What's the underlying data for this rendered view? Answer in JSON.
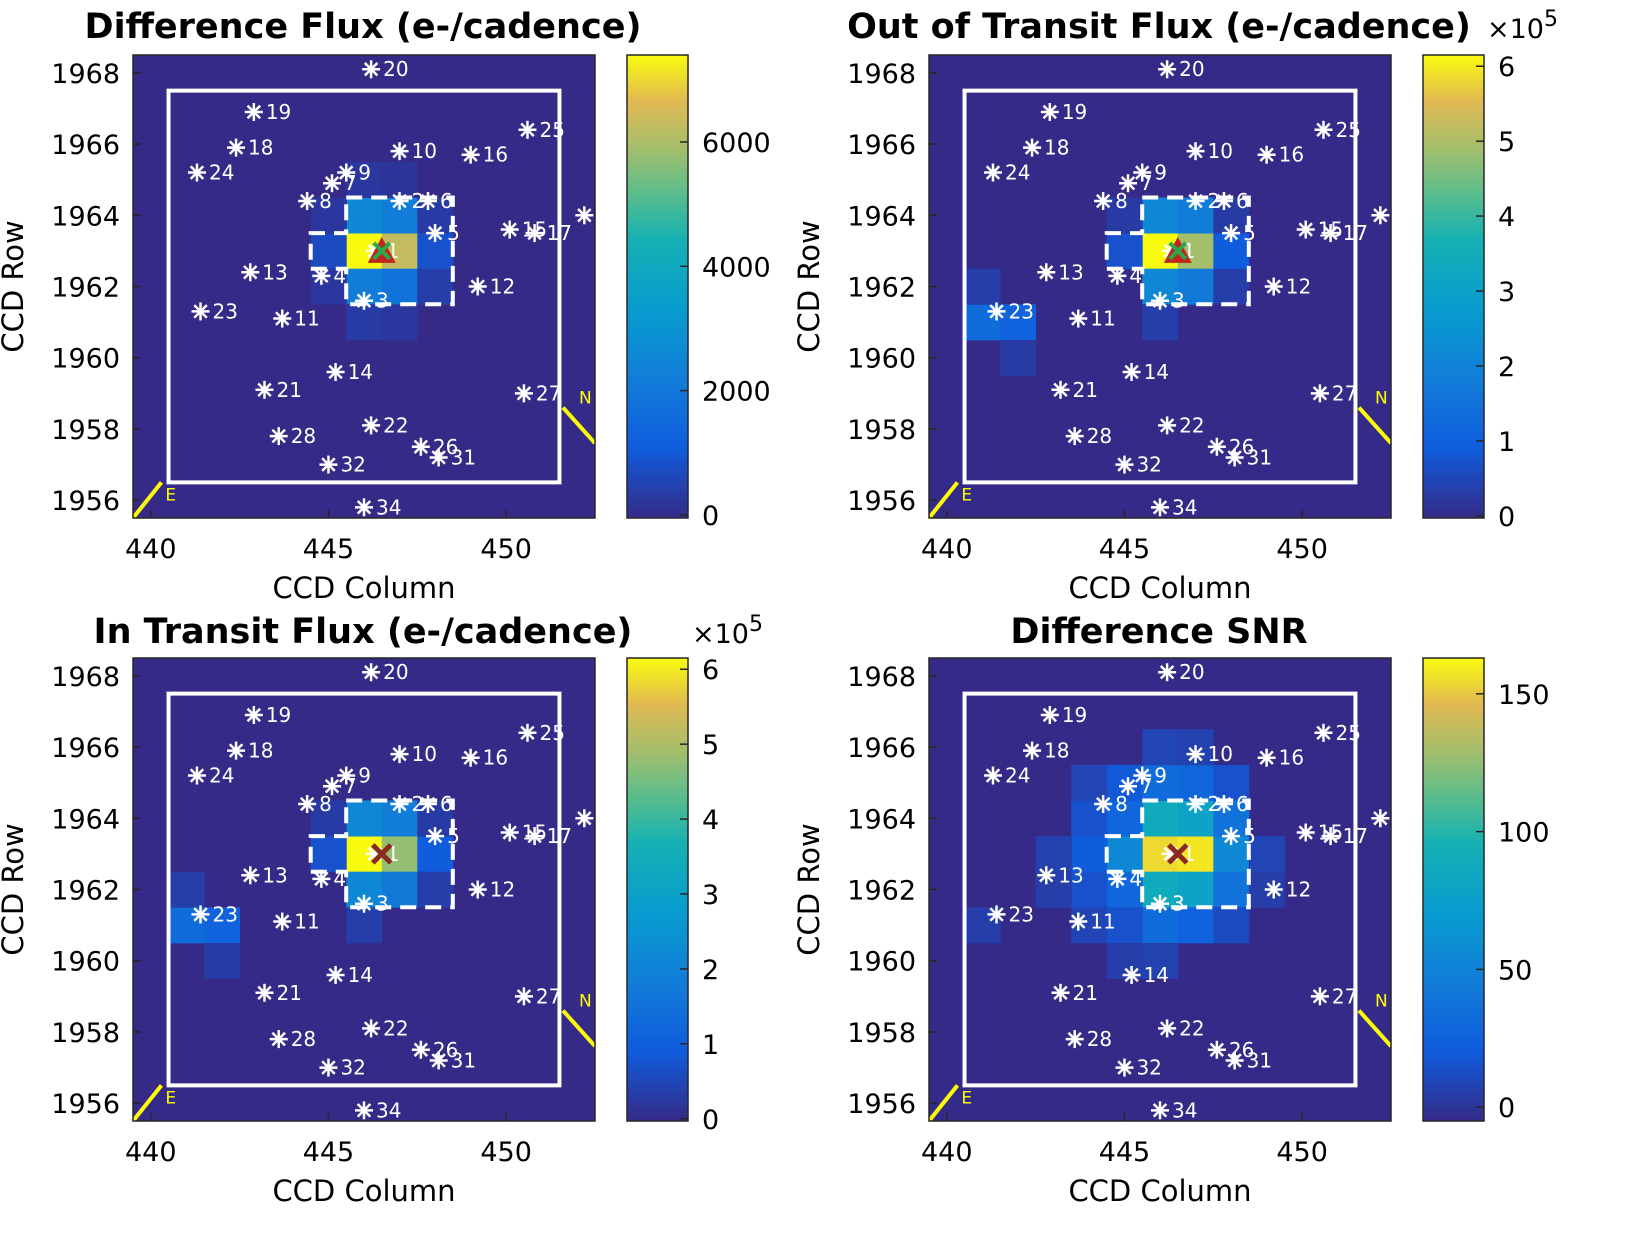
{
  "chart_data": [
    {
      "type": "heatmap",
      "title": "Difference Flux (e-/cadence)",
      "xlabel": "CCD Column",
      "ylabel": "CCD Row",
      "colorbar": {
        "ticks": [
          "0",
          "2000",
          "4000",
          "6000"
        ],
        "tick_values": [
          0,
          2000,
          4000,
          6000
        ],
        "range": [
          -50,
          7400
        ],
        "multiplier": ""
      },
      "marker": "triangle",
      "pixels": [
        {
          "col": 446,
          "row": 1963,
          "v": 1
        },
        {
          "col": 447,
          "row": 1963,
          "v": 0.85
        },
        {
          "col": 448,
          "row": 1963,
          "v": 0.12
        },
        {
          "col": 446,
          "row": 1964,
          "v": 0.35
        },
        {
          "col": 447,
          "row": 1964,
          "v": 0.3
        },
        {
          "col": 446,
          "row": 1962,
          "v": 0.3
        },
        {
          "col": 447,
          "row": 1962,
          "v": 0.25
        },
        {
          "col": 445,
          "row": 1963,
          "v": 0.1
        },
        {
          "col": 448,
          "row": 1964,
          "v": 0.05
        },
        {
          "col": 448,
          "row": 1962,
          "v": 0.06
        },
        {
          "col": 445,
          "row": 1964,
          "v": 0.04
        },
        {
          "col": 445,
          "row": 1962,
          "v": 0.04
        },
        {
          "col": 446,
          "row": 1961,
          "v": 0.05
        },
        {
          "col": 447,
          "row": 1961,
          "v": 0.04
        },
        {
          "col": 446,
          "row": 1965,
          "v": 0.04
        },
        {
          "col": 447,
          "row": 1965,
          "v": 0.03
        }
      ]
    },
    {
      "type": "heatmap",
      "title": "Out of Transit Flux (e-/cadence)",
      "xlabel": "CCD Column",
      "ylabel": "CCD Row",
      "colorbar": {
        "ticks": [
          "0",
          "1",
          "2",
          "3",
          "4",
          "5",
          "6"
        ],
        "tick_values": [
          0,
          1,
          2,
          3,
          4,
          5,
          6
        ],
        "range": [
          -0.03,
          6.15
        ],
        "multiplier": "×10^5"
      },
      "marker": "triangle",
      "pixels": [
        {
          "col": 446,
          "row": 1963,
          "v": 1
        },
        {
          "col": 447,
          "row": 1963,
          "v": 0.8
        },
        {
          "col": 448,
          "row": 1963,
          "v": 0.15
        },
        {
          "col": 446,
          "row": 1964,
          "v": 0.35
        },
        {
          "col": 447,
          "row": 1964,
          "v": 0.3
        },
        {
          "col": 446,
          "row": 1962,
          "v": 0.35
        },
        {
          "col": 447,
          "row": 1962,
          "v": 0.28
        },
        {
          "col": 445,
          "row": 1963,
          "v": 0.12
        },
        {
          "col": 441,
          "row": 1961,
          "v": 0.22
        },
        {
          "col": 442,
          "row": 1961,
          "v": 0.18
        },
        {
          "col": 441,
          "row": 1962,
          "v": 0.06
        },
        {
          "col": 442,
          "row": 1960,
          "v": 0.05
        },
        {
          "col": 446,
          "row": 1961,
          "v": 0.06
        },
        {
          "col": 445,
          "row": 1964,
          "v": 0.05
        },
        {
          "col": 448,
          "row": 1964,
          "v": 0.05
        },
        {
          "col": 448,
          "row": 1962,
          "v": 0.06
        }
      ]
    },
    {
      "type": "heatmap",
      "title": "In Transit Flux (e-/cadence)",
      "xlabel": "CCD Column",
      "ylabel": "CCD Row",
      "colorbar": {
        "ticks": [
          "0",
          "1",
          "2",
          "3",
          "4",
          "5",
          "6"
        ],
        "tick_values": [
          0,
          1,
          2,
          3,
          4,
          5,
          6
        ],
        "range": [
          -0.03,
          6.15
        ],
        "multiplier": "×10^5"
      },
      "marker": "cross",
      "pixels": [
        {
          "col": 446,
          "row": 1963,
          "v": 1
        },
        {
          "col": 447,
          "row": 1963,
          "v": 0.78
        },
        {
          "col": 448,
          "row": 1963,
          "v": 0.15
        },
        {
          "col": 446,
          "row": 1964,
          "v": 0.35
        },
        {
          "col": 447,
          "row": 1964,
          "v": 0.3
        },
        {
          "col": 446,
          "row": 1962,
          "v": 0.35
        },
        {
          "col": 447,
          "row": 1962,
          "v": 0.28
        },
        {
          "col": 445,
          "row": 1963,
          "v": 0.12
        },
        {
          "col": 441,
          "row": 1961,
          "v": 0.22
        },
        {
          "col": 442,
          "row": 1961,
          "v": 0.18
        },
        {
          "col": 441,
          "row": 1962,
          "v": 0.06
        },
        {
          "col": 442,
          "row": 1960,
          "v": 0.05
        },
        {
          "col": 446,
          "row": 1961,
          "v": 0.06
        },
        {
          "col": 445,
          "row": 1964,
          "v": 0.05
        },
        {
          "col": 448,
          "row": 1964,
          "v": 0.05
        },
        {
          "col": 448,
          "row": 1962,
          "v": 0.06
        }
      ]
    },
    {
      "type": "heatmap",
      "title": "Difference SNR",
      "xlabel": "CCD Column",
      "ylabel": "CCD Row",
      "colorbar": {
        "ticks": [
          "0",
          "50",
          "100",
          "150"
        ],
        "tick_values": [
          0,
          50,
          100,
          150
        ],
        "range": [
          -5,
          163
        ],
        "multiplier": ""
      },
      "marker": "cross",
      "pixels": [
        {
          "col": 446,
          "row": 1963,
          "v": 0.95
        },
        {
          "col": 447,
          "row": 1963,
          "v": 0.97
        },
        {
          "col": 446,
          "row": 1964,
          "v": 0.55
        },
        {
          "col": 447,
          "row": 1964,
          "v": 0.5
        },
        {
          "col": 446,
          "row": 1962,
          "v": 0.55
        },
        {
          "col": 447,
          "row": 1962,
          "v": 0.5
        },
        {
          "col": 448,
          "row": 1963,
          "v": 0.35
        },
        {
          "col": 445,
          "row": 1963,
          "v": 0.35
        },
        {
          "col": 448,
          "row": 1964,
          "v": 0.25
        },
        {
          "col": 448,
          "row": 1962,
          "v": 0.25
        },
        {
          "col": 445,
          "row": 1964,
          "v": 0.2
        },
        {
          "col": 445,
          "row": 1962,
          "v": 0.2
        },
        {
          "col": 446,
          "row": 1965,
          "v": 0.22
        },
        {
          "col": 447,
          "row": 1965,
          "v": 0.2
        },
        {
          "col": 446,
          "row": 1961,
          "v": 0.22
        },
        {
          "col": 447,
          "row": 1961,
          "v": 0.18
        },
        {
          "col": 444,
          "row": 1963,
          "v": 0.15
        },
        {
          "col": 444,
          "row": 1964,
          "v": 0.12
        },
        {
          "col": 444,
          "row": 1962,
          "v": 0.12
        },
        {
          "col": 445,
          "row": 1965,
          "v": 0.14
        },
        {
          "col": 448,
          "row": 1965,
          "v": 0.12
        },
        {
          "col": 445,
          "row": 1961,
          "v": 0.12
        },
        {
          "col": 448,
          "row": 1961,
          "v": 0.1
        },
        {
          "col": 444,
          "row": 1965,
          "v": 0.08
        },
        {
          "col": 444,
          "row": 1961,
          "v": 0.08
        },
        {
          "col": 449,
          "row": 1963,
          "v": 0.08
        },
        {
          "col": 443,
          "row": 1963,
          "v": 0.07
        },
        {
          "col": 443,
          "row": 1962,
          "v": 0.06
        },
        {
          "col": 446,
          "row": 1966,
          "v": 0.08
        },
        {
          "col": 447,
          "row": 1966,
          "v": 0.07
        },
        {
          "col": 446,
          "row": 1960,
          "v": 0.07
        },
        {
          "col": 445,
          "row": 1960,
          "v": 0.06
        },
        {
          "col": 441,
          "row": 1961,
          "v": 0.06
        },
        {
          "col": 449,
          "row": 1962,
          "v": 0.06
        }
      ]
    }
  ],
  "common": {
    "x_ticks": [
      "440",
      "445",
      "450"
    ],
    "x_tick_values": [
      440,
      445,
      450
    ],
    "y_ticks": [
      "1968",
      "1966",
      "1964",
      "1962",
      "1960",
      "1958",
      "1956"
    ],
    "y_tick_values": [
      1968,
      1966,
      1964,
      1962,
      1960,
      1958,
      1956
    ],
    "xlim": [
      439.5,
      452.5
    ],
    "ylim": [
      1955.5,
      1968.5
    ],
    "target_col": 446.5,
    "target_row": 1963,
    "compass": {
      "north": "N",
      "east": "E"
    },
    "stars": [
      {
        "id": "1",
        "col": 446.3,
        "row": 1963.0
      },
      {
        "id": "2",
        "col": 447.0,
        "row": 1964.4
      },
      {
        "id": "3",
        "col": 446.0,
        "row": 1961.6
      },
      {
        "id": "4",
        "col": 444.8,
        "row": 1962.3
      },
      {
        "id": "5",
        "col": 448.0,
        "row": 1963.5
      },
      {
        "id": "6",
        "col": 447.8,
        "row": 1964.4
      },
      {
        "id": "7",
        "col": 445.1,
        "row": 1964.9
      },
      {
        "id": "8",
        "col": 444.4,
        "row": 1964.4
      },
      {
        "id": "9",
        "col": 445.5,
        "row": 1965.2
      },
      {
        "id": "10",
        "col": 447.0,
        "row": 1965.8
      },
      {
        "id": "11",
        "col": 443.7,
        "row": 1961.1
      },
      {
        "id": "12",
        "col": 449.2,
        "row": 1962.0
      },
      {
        "id": "13",
        "col": 442.8,
        "row": 1962.4
      },
      {
        "id": "14",
        "col": 445.2,
        "row": 1959.6
      },
      {
        "id": "15",
        "col": 450.1,
        "row": 1963.6
      },
      {
        "id": "16",
        "col": 449.0,
        "row": 1965.7
      },
      {
        "id": "17",
        "col": 450.8,
        "row": 1963.5
      },
      {
        "id": "18",
        "col": 442.4,
        "row": 1965.9
      },
      {
        "id": "19",
        "col": 442.9,
        "row": 1966.9
      },
      {
        "id": "20",
        "col": 446.2,
        "row": 1968.1
      },
      {
        "id": "21",
        "col": 443.2,
        "row": 1959.1
      },
      {
        "id": "22",
        "col": 446.2,
        "row": 1958.1
      },
      {
        "id": "23",
        "col": 441.4,
        "row": 1961.3
      },
      {
        "id": "24",
        "col": 441.3,
        "row": 1965.2
      },
      {
        "id": "25",
        "col": 450.6,
        "row": 1966.4
      },
      {
        "id": "26",
        "col": 447.6,
        "row": 1957.5
      },
      {
        "id": "27",
        "col": 450.5,
        "row": 1959.0
      },
      {
        "id": "28",
        "col": 443.6,
        "row": 1957.8
      },
      {
        "id": "31",
        "col": 448.1,
        "row": 1957.2
      },
      {
        "id": "32",
        "col": 445.0,
        "row": 1957.0
      },
      {
        "id": "34",
        "col": 446.0,
        "row": 1955.8
      },
      {
        "id": "",
        "col": 452.2,
        "row": 1964.0
      }
    ]
  }
}
